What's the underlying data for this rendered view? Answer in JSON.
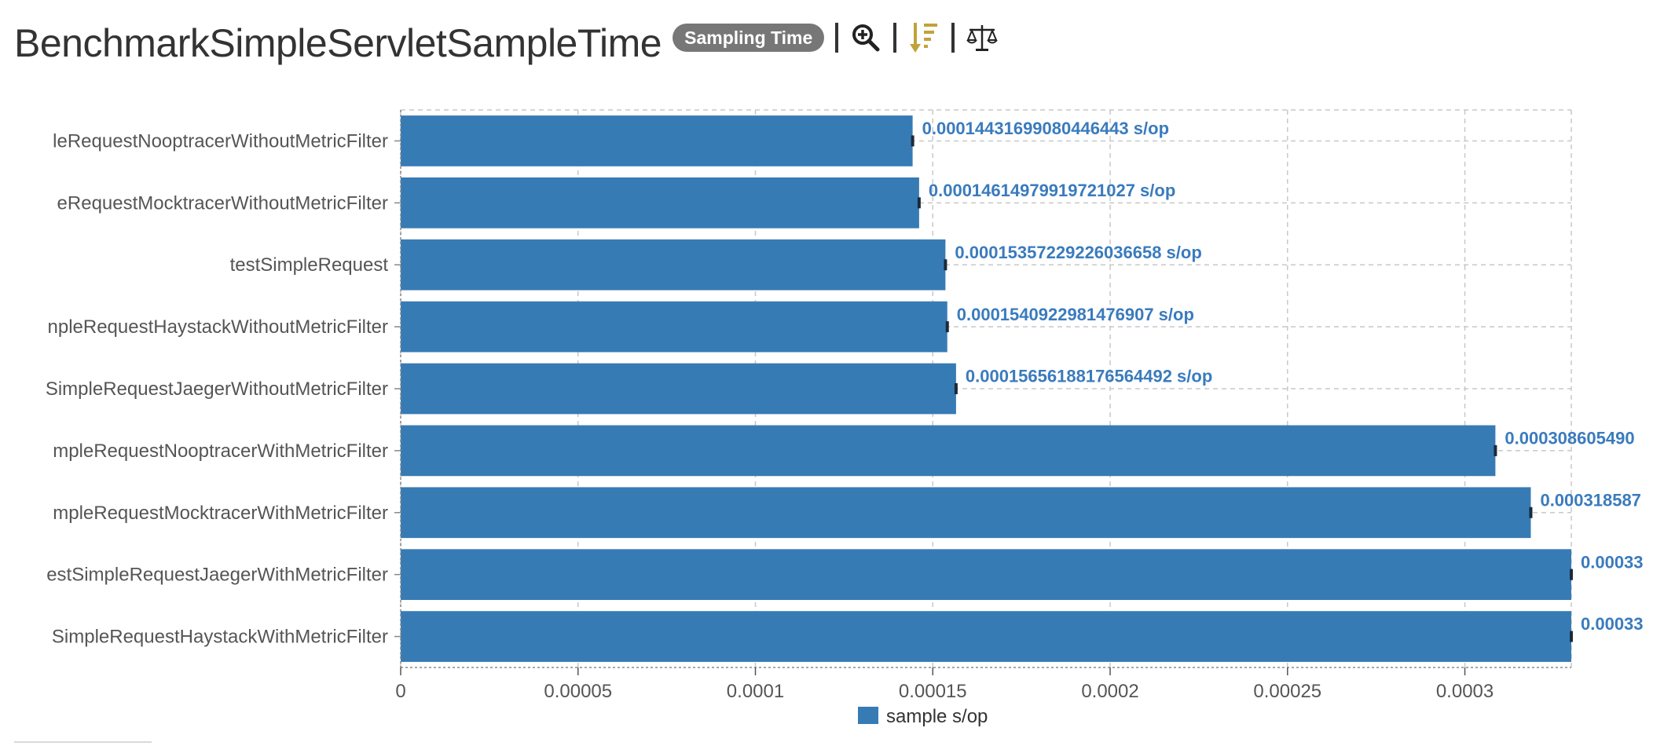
{
  "header": {
    "title": "BenchmarkSimpleServletSampleTime",
    "badge": "Sampling Time"
  },
  "icons": {
    "zoom": "zoom-in-icon",
    "sort": "sort-descending-icon",
    "compare": "balance-scale-icon"
  },
  "colors": {
    "bar": "#377bb5",
    "label": "#3a7bbd",
    "sort_icon": "#c2a23a",
    "badge": "#777777"
  },
  "chart_data": {
    "type": "bar",
    "orientation": "horizontal",
    "categories": [
      "leRequestNooptracerWithoutMetricFilter",
      "eRequestMocktracerWithoutMetricFilter",
      "testSimpleRequest",
      "npleRequestHaystackWithoutMetricFilter",
      "SimpleRequestJaegerWithoutMetricFilter",
      "mpleRequestNooptracerWithMetricFilter",
      "mpleRequestMocktracerWithMetricFilter",
      "estSimpleRequestJaegerWithMetricFilter",
      "SimpleRequestHaystackWithMetricFilter"
    ],
    "series": [
      {
        "name": "sample s/op",
        "values": [
          0.00014431699080446443,
          0.00014614979919721027,
          0.00015357229226036658,
          0.0001540922981476907,
          0.00015656188176564492,
          0.00030860549,
          0.000318587,
          0.00033,
          0.00033
        ]
      }
    ],
    "data_labels": [
      "0.00014431699080446443 s/op",
      "0.00014614979919721027 s/op",
      "0.00015357229226036658 s/op",
      "0.0001540922981476907 s/op",
      "0.00015656188176564492 s/op",
      "0.000308605490",
      "0.000318587",
      "0.00033",
      "0.00033"
    ],
    "xlim": [
      0,
      0.00033
    ],
    "xticks": [
      0,
      5e-05,
      0.0001,
      0.00015,
      0.0002,
      0.00025,
      0.0003
    ],
    "xtick_labels": [
      "0",
      "0.00005",
      "0.0001",
      "0.00015",
      "0.0002",
      "0.00025",
      "0.0003"
    ],
    "grid": true,
    "legend": "bottom-center"
  }
}
